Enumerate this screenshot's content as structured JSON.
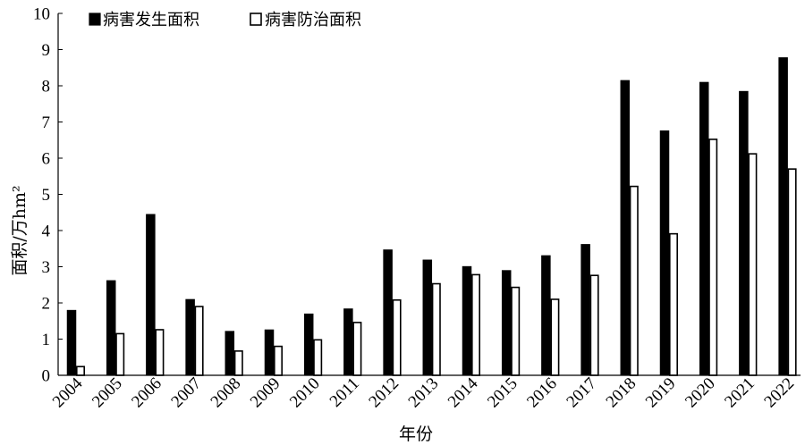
{
  "chart_data": {
    "type": "bar",
    "xlabel": "年份",
    "ylabel": "面积/万hm²",
    "ylim": [
      0,
      10
    ],
    "yticks": [
      0,
      1,
      2,
      3,
      4,
      5,
      6,
      7,
      8,
      9,
      10
    ],
    "legend_position": "top-left",
    "grid": false,
    "categories": [
      "2004",
      "2005",
      "2006",
      "2007",
      "2008",
      "2009",
      "2010",
      "2011",
      "2012",
      "2013",
      "2014",
      "2015",
      "2016",
      "2017",
      "2018",
      "2019",
      "2020",
      "2021",
      "2022"
    ],
    "series": [
      {
        "name": "病害发生面积",
        "color": "#000000",
        "values": [
          1.8,
          2.62,
          4.45,
          2.1,
          1.22,
          1.26,
          1.7,
          1.84,
          3.47,
          3.19,
          3.01,
          2.9,
          3.31,
          3.62,
          8.15,
          6.76,
          8.1,
          7.85,
          8.78
        ]
      },
      {
        "name": "病害防治面积",
        "color": "#ffffff",
        "values": [
          0.24,
          1.15,
          1.26,
          1.9,
          0.67,
          0.8,
          0.98,
          1.46,
          2.08,
          2.53,
          2.78,
          2.43,
          2.1,
          2.76,
          5.22,
          3.91,
          6.52,
          6.12,
          5.7
        ]
      }
    ]
  }
}
